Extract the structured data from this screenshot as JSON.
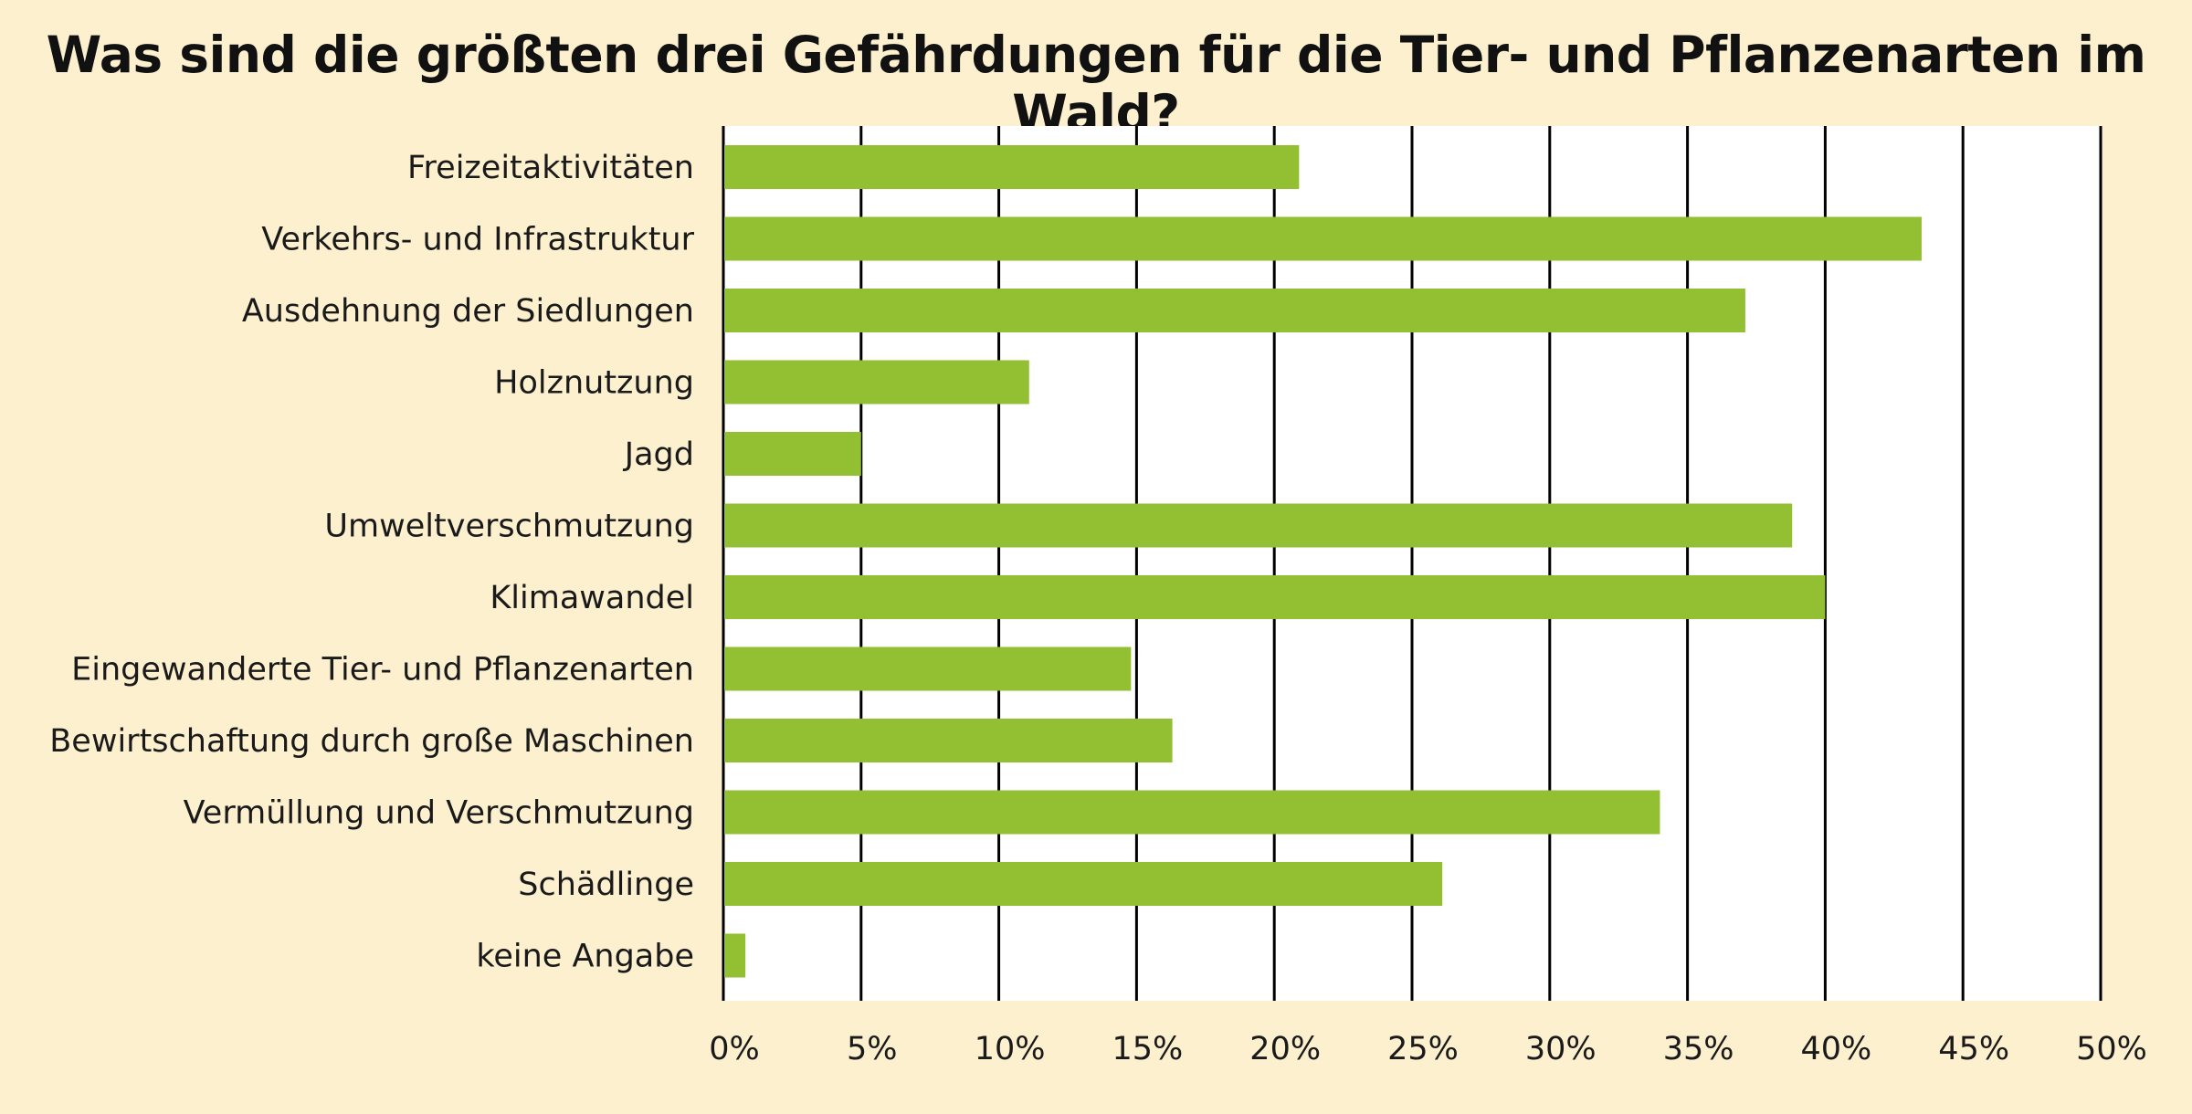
{
  "chart_data": {
    "type": "bar",
    "orientation": "horizontal",
    "title": "Was sind die größten drei Gefährdungen für die Tier- und Pflanzenarten im Wald?",
    "xlabel": "",
    "ylabel": "",
    "xlim": [
      0,
      50
    ],
    "x_ticks": [
      0,
      5,
      10,
      15,
      20,
      25,
      30,
      35,
      40,
      45,
      50
    ],
    "tick_labels": [
      "0%",
      "5%",
      "10%",
      "15%",
      "20%",
      "25%",
      "30%",
      "35%",
      "40%",
      "45%",
      "50%"
    ],
    "grid": true,
    "categories": [
      "Freizeitaktivitäten",
      "Verkehrs- und Infrastruktur",
      "Ausdehnung der Siedlungen",
      "Holznutzung",
      "Jagd",
      "Umweltverschmutzung",
      "Klimawandel",
      "Eingewanderte Tier- und Pflanzenarten",
      "Bewirtschaftung durch große Maschinen",
      "Vermüllung und Verschmutzung",
      "Schädlinge",
      "keine Angabe"
    ],
    "values": [
      20.9,
      43.5,
      37.1,
      11.1,
      5.0,
      38.8,
      40.0,
      14.8,
      16.3,
      34.0,
      26.1,
      0.8
    ],
    "colors": {
      "bar": "#93c033",
      "plot_background": "#ffffff",
      "page_background": "#fdf0cf",
      "grid": "#000000"
    }
  }
}
